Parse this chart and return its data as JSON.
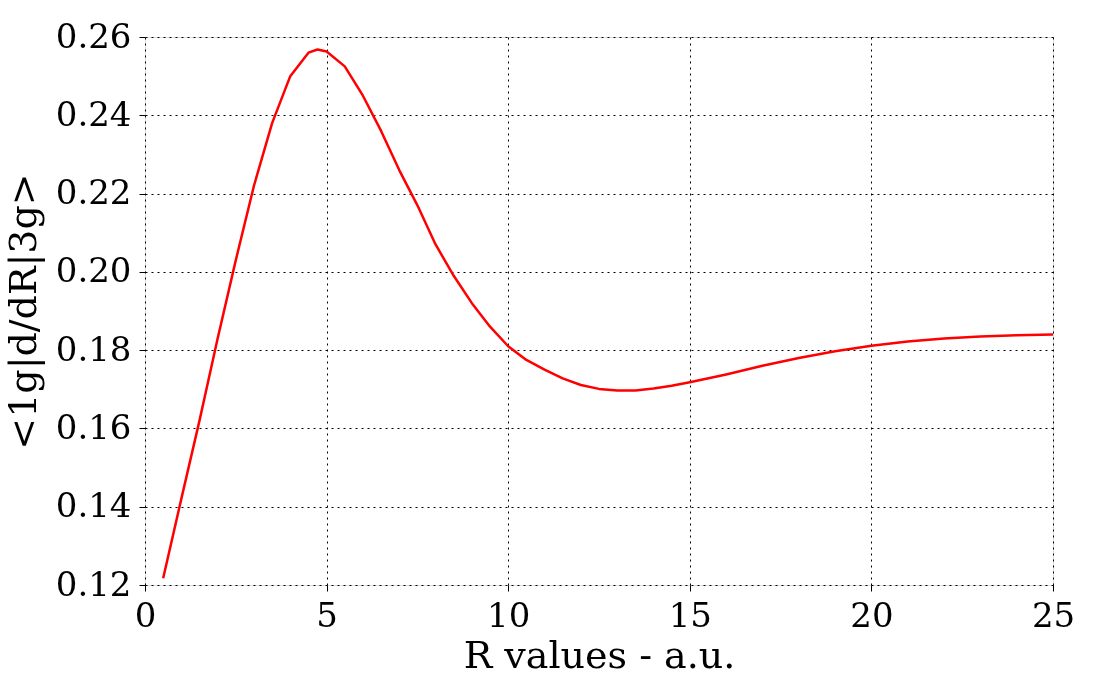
{
  "chart_data": {
    "type": "line",
    "xlabel": "R values - a.u.",
    "ylabel": "<1g|d/dR|3g>",
    "x": [
      0.5,
      1.0,
      1.5,
      2.0,
      2.5,
      3.0,
      3.5,
      4.0,
      4.5,
      4.75,
      5.0,
      5.5,
      6.0,
      6.5,
      7.0,
      7.5,
      8.0,
      8.5,
      9.0,
      9.5,
      10.0,
      10.5,
      11,
      11.5,
      12,
      12.5,
      13,
      13.5,
      14,
      14.5,
      15,
      16,
      17,
      18,
      19,
      20,
      21,
      22,
      23,
      24,
      25
    ],
    "series": [
      {
        "color": "#ff0000",
        "values": [
          0.1217,
          0.142,
          0.162,
          0.183,
          0.203,
          0.222,
          0.238,
          0.25,
          0.256,
          0.2568,
          0.2563,
          0.2525,
          0.245,
          0.236,
          0.226,
          0.217,
          0.207,
          0.199,
          0.192,
          0.186,
          0.181,
          0.1775,
          0.175,
          0.1728,
          0.1711,
          0.1701,
          0.1697,
          0.1697,
          0.1702,
          0.1709,
          0.1718,
          0.1738,
          0.176,
          0.178,
          0.1797,
          0.1811,
          0.1822,
          0.183,
          0.1835,
          0.1838,
          0.184
        ]
      }
    ],
    "xlim": [
      0,
      25
    ],
    "xticks": [
      0,
      5,
      10,
      15,
      20,
      25
    ],
    "ylim": [
      0.12,
      0.26
    ],
    "yticks": [
      0.12,
      0.14,
      0.16,
      0.18,
      {
        "value": 0.2,
        "label": "0.20"
      },
      0.22,
      0.24,
      0.26
    ],
    "grid": true,
    "marker": "none",
    "line_style": "solid"
  }
}
